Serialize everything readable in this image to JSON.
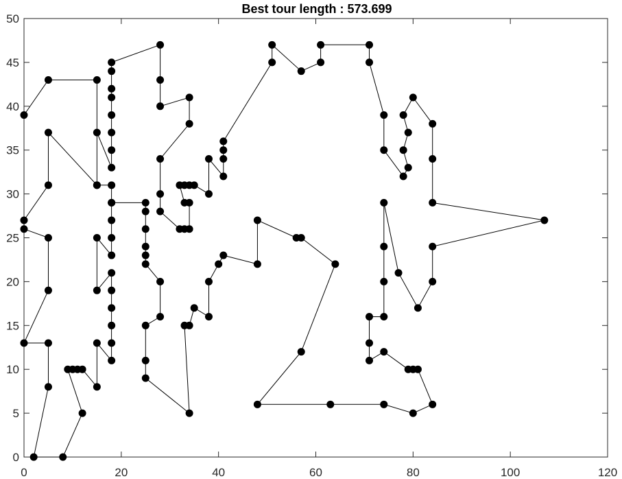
{
  "chart_data": {
    "type": "line",
    "title": "Best tour length : 573.699",
    "xlabel": "",
    "ylabel": "",
    "xlim": [
      0,
      120
    ],
    "ylim": [
      0,
      50
    ],
    "xticks": [
      0,
      20,
      40,
      60,
      80,
      100,
      120
    ],
    "yticks": [
      0,
      5,
      10,
      15,
      20,
      25,
      30,
      35,
      40,
      45,
      50
    ],
    "grid": false,
    "series": [
      {
        "marker": "filled-circle",
        "color": "#000000",
        "points": [
          [
            0,
            39
          ],
          [
            5,
            43
          ],
          [
            15,
            43
          ],
          [
            15,
            31
          ],
          [
            18,
            31
          ],
          [
            18,
            29
          ],
          [
            25,
            29
          ],
          [
            25,
            28
          ],
          [
            25,
            26
          ],
          [
            25,
            24
          ],
          [
            25,
            23
          ],
          [
            25,
            22
          ],
          [
            28,
            20
          ],
          [
            28,
            16
          ],
          [
            25,
            15
          ],
          [
            25,
            11
          ],
          [
            25,
            9
          ],
          [
            34,
            5
          ],
          [
            33,
            15
          ],
          [
            34,
            15
          ],
          [
            35,
            17
          ],
          [
            38,
            16
          ],
          [
            38,
            20
          ],
          [
            40,
            22
          ],
          [
            41,
            23
          ],
          [
            48,
            22
          ],
          [
            48,
            27
          ],
          [
            56,
            25
          ],
          [
            57,
            25
          ],
          [
            64,
            22
          ],
          [
            57,
            12
          ],
          [
            48,
            6
          ],
          [
            63,
            6
          ],
          [
            74,
            6
          ],
          [
            80,
            5
          ],
          [
            84,
            6
          ],
          [
            81,
            10
          ],
          [
            80,
            10
          ],
          [
            79,
            10
          ],
          [
            74,
            12
          ],
          [
            71,
            11
          ],
          [
            71,
            13
          ],
          [
            71,
            16
          ],
          [
            74,
            16
          ],
          [
            74,
            20
          ],
          [
            74,
            24
          ],
          [
            74,
            29
          ],
          [
            77,
            21
          ],
          [
            81,
            17
          ],
          [
            84,
            20
          ],
          [
            84,
            24
          ],
          [
            107,
            27
          ],
          [
            84,
            29
          ],
          [
            84,
            34
          ],
          [
            84,
            38
          ],
          [
            80,
            41
          ],
          [
            78,
            39
          ],
          [
            79,
            37
          ],
          [
            78,
            35
          ],
          [
            79,
            33
          ],
          [
            78,
            32
          ],
          [
            74,
            35
          ],
          [
            74,
            39
          ],
          [
            71,
            45
          ],
          [
            71,
            47
          ],
          [
            61,
            47
          ],
          [
            61,
            45
          ],
          [
            57,
            44
          ],
          [
            51,
            47
          ],
          [
            51,
            45
          ],
          [
            41,
            36
          ],
          [
            41,
            35
          ],
          [
            41,
            34
          ],
          [
            41,
            32
          ],
          [
            38,
            34
          ],
          [
            38,
            30
          ],
          [
            35,
            31
          ],
          [
            34,
            31
          ],
          [
            33,
            31
          ],
          [
            32,
            31
          ],
          [
            33,
            29
          ],
          [
            34,
            29
          ],
          [
            34,
            26
          ],
          [
            33,
            26
          ],
          [
            32,
            26
          ],
          [
            28,
            28
          ],
          [
            28,
            30
          ],
          [
            28,
            34
          ],
          [
            34,
            38
          ],
          [
            34,
            41
          ],
          [
            28,
            40
          ],
          [
            28,
            43
          ],
          [
            28,
            47
          ],
          [
            18,
            45
          ],
          [
            18,
            44
          ],
          [
            18,
            42
          ],
          [
            18,
            41
          ],
          [
            18,
            39
          ],
          [
            18,
            37
          ],
          [
            18,
            35
          ],
          [
            18,
            33
          ],
          [
            15,
            37
          ],
          [
            15,
            31
          ],
          [
            5,
            37
          ],
          [
            5,
            31
          ],
          [
            0,
            27
          ],
          [
            0,
            26
          ],
          [
            5,
            25
          ],
          [
            5,
            19
          ],
          [
            0,
            13
          ],
          [
            5,
            13
          ],
          [
            5,
            8
          ],
          [
            2,
            0
          ],
          [
            8,
            0
          ],
          [
            12,
            5
          ],
          [
            9,
            10
          ],
          [
            10,
            10
          ],
          [
            11,
            10
          ],
          [
            12,
            10
          ],
          [
            15,
            8
          ],
          [
            15,
            13
          ],
          [
            18,
            11
          ],
          [
            18,
            13
          ],
          [
            18,
            15
          ],
          [
            18,
            17
          ],
          [
            18,
            19
          ],
          [
            18,
            21
          ],
          [
            15,
            19
          ],
          [
            15,
            25
          ],
          [
            18,
            23
          ],
          [
            18,
            25
          ],
          [
            18,
            27
          ],
          [
            18,
            29
          ]
        ]
      }
    ]
  }
}
